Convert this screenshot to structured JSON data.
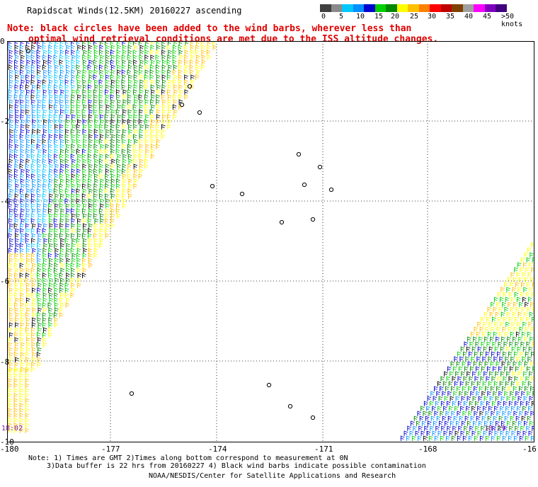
{
  "title": "Rapidscat Winds(12.5KM) 20160227 ascending",
  "note": {
    "line1": "Note: black circles have been added to the wind barbs, wherever less than",
    "line2": "optimal wind retrieval conditions are met due to the ISS altitude changes."
  },
  "color_scale": {
    "colors": [
      "#404040",
      "#8a8a8a",
      "#00c8ff",
      "#0090ff",
      "#0000d0",
      "#00d000",
      "#008800",
      "#ffff00",
      "#ffc000",
      "#ff8000",
      "#ff0000",
      "#c00000",
      "#804000",
      "#a0a0a0",
      "#ff00ff",
      "#8000c0",
      "#400080"
    ],
    "labels": [
      "0",
      "5",
      "10",
      "15",
      "20",
      "25",
      "30",
      "35",
      "40",
      "45",
      ">50 knots"
    ]
  },
  "axes": {
    "x_ticks": [
      "-180",
      "-177",
      "-174",
      "-171",
      "-168",
      "-16"
    ],
    "y_ticks": [
      "0",
      "-2",
      "-4",
      "-6",
      "-8",
      "-10"
    ]
  },
  "times": {
    "left": "18:02",
    "right": "18:29"
  },
  "footer": {
    "line1": "Note: 1) Times are GMT 2)Times along bottom correspond to measurement at 0N",
    "line2": "3)Data buffer is 22 hrs from 20160227 4) Black wind barbs indicate possible contamination",
    "line3": "NOAA/NESDIS/Center for Satellite Applications and Research"
  }
}
